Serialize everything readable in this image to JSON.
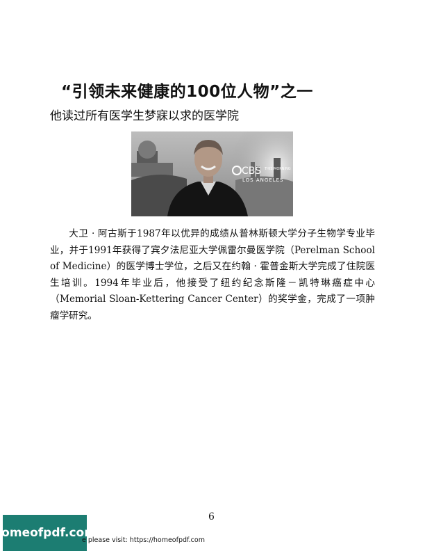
{
  "heading": {
    "title": "“引领未来健康的100位人物”之一"
  },
  "subheading": "他读过所有医学生梦寐以求的医学院",
  "photo": {
    "logo_text": "CBS",
    "logo_sub": "THIS MORNING",
    "location_text": "LOS ANGELES"
  },
  "body": {
    "paragraph": "大卫 · 阿古斯于1987年以优异的成绩从普林斯顿大学分子生物学专业毕业，并于1991年获得了宾夕法尼亚大学佩雷尔曼医学院（Perelman School of Medicine）的医学博士学位，之后又在约翰 · 霍普金斯大学完成了住院医生培训。1994年毕业后，他接受了纽约纪念斯隆－凯特琳癌症中心（Memorial Sloan-Kettering Cancer Center）的奖学金，完成了一项肿瘤学研究。"
  },
  "footer": {
    "page_number": "6",
    "badge": "homeofpdf.com",
    "visit_text": "e please visit: https://homeofpdf.com"
  }
}
